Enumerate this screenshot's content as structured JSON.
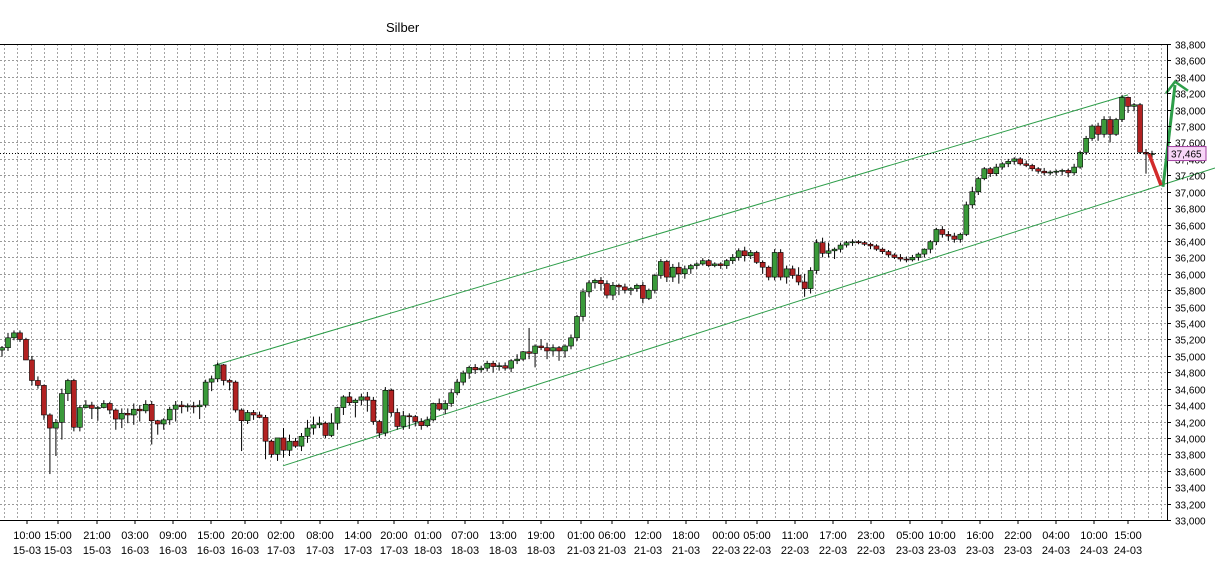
{
  "chart_data": {
    "type": "candlestick",
    "title": "Silber",
    "xlabel": "",
    "ylabel": "",
    "ylim": [
      33000,
      38800
    ],
    "y_ticks": [
      "33,000",
      "33,200",
      "33,400",
      "33,600",
      "33,800",
      "34,000",
      "34,200",
      "34,400",
      "34,600",
      "34,800",
      "35,000",
      "35,200",
      "35,400",
      "35,600",
      "35,800",
      "36,000",
      "36,200",
      "36,400",
      "36,600",
      "36,800",
      "37,000",
      "37,200",
      "37,400",
      "37,600",
      "37,800",
      "38,000",
      "38,200",
      "38,400",
      "38,600",
      "38,800"
    ],
    "x_tick_times": [
      "10:00",
      "10:00",
      "15:00",
      "21:00",
      "03:00",
      "09:00",
      "15:00",
      "20:00",
      "02:00",
      "08:00",
      "14:00",
      "20:00",
      "01:00",
      "07:00",
      "13:00",
      "19:00",
      "01:00",
      "06:00",
      "12:00",
      "18:00",
      "00:00",
      "05:00",
      "11:00",
      "17:00",
      "23:00",
      "05:00",
      "10:00",
      "16:00",
      "22:00",
      "04:00",
      "10:00",
      "15:00"
    ],
    "x_tick_dates": [
      "3",
      "15-03",
      "15-03",
      "15-03",
      "16-03",
      "16-03",
      "16-03",
      "16-03",
      "17-03",
      "17-03",
      "17-03",
      "17-03",
      "18-03",
      "18-03",
      "18-03",
      "18-03",
      "21-03",
      "21-03",
      "21-03",
      "21-03",
      "22-03",
      "22-03",
      "22-03",
      "22-03",
      "22-03",
      "23-03",
      "23-03",
      "23-03",
      "23-03",
      "24-03",
      "24-03",
      "24-03"
    ],
    "last_price": "37,465",
    "grid": true,
    "candles": [
      [
        35070,
        35120,
        34990,
        35100
      ],
      [
        35100,
        35280,
        35060,
        35220
      ],
      [
        35220,
        35310,
        35190,
        35280
      ],
      [
        35280,
        35310,
        35170,
        35200
      ],
      [
        35200,
        35220,
        34950,
        34950
      ],
      [
        34950,
        35000,
        34640,
        34700
      ],
      [
        34700,
        34750,
        34600,
        34640
      ],
      [
        34640,
        34650,
        34220,
        34280
      ],
      [
        34280,
        34300,
        33560,
        34120
      ],
      [
        34120,
        34230,
        33780,
        34190
      ],
      [
        34190,
        34600,
        33980,
        34540
      ],
      [
        34540,
        34720,
        34450,
        34700
      ],
      [
        34700,
        34720,
        34080,
        34130
      ],
      [
        34130,
        34400,
        34080,
        34370
      ],
      [
        34370,
        34460,
        34360,
        34400
      ],
      [
        34400,
        34440,
        34230,
        34360
      ],
      [
        34360,
        34390,
        34210,
        34370
      ],
      [
        34370,
        34460,
        34360,
        34420
      ],
      [
        34420,
        34440,
        34290,
        34340
      ],
      [
        34340,
        34360,
        34100,
        34230
      ],
      [
        34230,
        34360,
        34120,
        34300
      ],
      [
        34300,
        34360,
        34180,
        34280
      ],
      [
        34280,
        34420,
        34160,
        34350
      ],
      [
        34350,
        34400,
        34200,
        34330
      ],
      [
        34330,
        34460,
        34300,
        34410
      ],
      [
        34410,
        34450,
        33920,
        34210
      ],
      [
        34210,
        34220,
        34040,
        34170
      ],
      [
        34170,
        34240,
        34100,
        34220
      ],
      [
        34220,
        34380,
        34160,
        34350
      ],
      [
        34350,
        34450,
        34200,
        34400
      ],
      [
        34400,
        34450,
        34300,
        34380
      ],
      [
        34380,
        34420,
        34320,
        34390
      ],
      [
        34390,
        34440,
        34300,
        34380
      ],
      [
        34380,
        34460,
        34230,
        34400
      ],
      [
        34400,
        34710,
        34370,
        34680
      ],
      [
        34680,
        34760,
        34570,
        34720
      ],
      [
        34720,
        34920,
        34680,
        34890
      ],
      [
        34890,
        34900,
        34640,
        34700
      ],
      [
        34700,
        34720,
        34580,
        34680
      ],
      [
        34680,
        34700,
        34310,
        34340
      ],
      [
        34340,
        34360,
        33840,
        34210
      ],
      [
        34210,
        34340,
        34170,
        34310
      ],
      [
        34310,
        34340,
        34220,
        34280
      ],
      [
        34280,
        34320,
        34240,
        34250
      ],
      [
        34250,
        34280,
        33740,
        33960
      ],
      [
        33960,
        33980,
        33760,
        33800
      ],
      [
        33800,
        33960,
        33720,
        34000
      ],
      [
        34000,
        34120,
        33760,
        33850
      ],
      [
        33850,
        34040,
        33780,
        33960
      ],
      [
        33960,
        34000,
        33880,
        33900
      ],
      [
        33900,
        34060,
        33840,
        34020
      ],
      [
        34020,
        34220,
        33940,
        34120
      ],
      [
        34120,
        34260,
        34040,
        34160
      ],
      [
        34160,
        34260,
        34120,
        34180
      ],
      [
        34180,
        34200,
        34000,
        34030
      ],
      [
        34030,
        34300,
        34010,
        34180
      ],
      [
        34180,
        34380,
        34100,
        34370
      ],
      [
        34370,
        34520,
        34280,
        34500
      ],
      [
        34500,
        34560,
        34400,
        34430
      ],
      [
        34430,
        34480,
        34250,
        34460
      ],
      [
        34460,
        34540,
        34400,
        34500
      ],
      [
        34500,
        34560,
        34320,
        34460
      ],
      [
        34460,
        34500,
        34160,
        34200
      ],
      [
        34200,
        34220,
        34000,
        34060
      ],
      [
        34060,
        34620,
        34020,
        34580
      ],
      [
        34580,
        34600,
        34260,
        34310
      ],
      [
        34310,
        34360,
        34100,
        34140
      ],
      [
        34140,
        34330,
        34100,
        34270
      ],
      [
        34270,
        34300,
        34110,
        34260
      ],
      [
        34260,
        34280,
        34140,
        34200
      ],
      [
        34200,
        34240,
        34100,
        34150
      ],
      [
        34150,
        34260,
        34130,
        34220
      ],
      [
        34220,
        34430,
        34200,
        34420
      ],
      [
        34420,
        34480,
        34330,
        34350
      ],
      [
        34350,
        34460,
        34290,
        34420
      ],
      [
        34420,
        34600,
        34380,
        34550
      ],
      [
        34550,
        34720,
        34520,
        34680
      ],
      [
        34680,
        34820,
        34640,
        34790
      ],
      [
        34790,
        34880,
        34720,
        34860
      ],
      [
        34860,
        34900,
        34780,
        34830
      ],
      [
        34830,
        34880,
        34800,
        34850
      ],
      [
        34850,
        34940,
        34810,
        34910
      ],
      [
        34910,
        34940,
        34800,
        34870
      ],
      [
        34870,
        34920,
        34820,
        34880
      ],
      [
        34880,
        34920,
        34820,
        34850
      ],
      [
        34850,
        34960,
        34800,
        34940
      ],
      [
        34940,
        35020,
        34900,
        34960
      ],
      [
        34960,
        35060,
        34940,
        35050
      ],
      [
        35050,
        35340,
        34960,
        35030
      ],
      [
        35030,
        35140,
        34860,
        35120
      ],
      [
        35120,
        35200,
        35070,
        35100
      ],
      [
        35100,
        35160,
        34960,
        35060
      ],
      [
        35060,
        35140,
        35000,
        35100
      ],
      [
        35100,
        35120,
        34940,
        35060
      ],
      [
        35060,
        35140,
        34980,
        35120
      ],
      [
        35120,
        35260,
        35080,
        35220
      ],
      [
        35220,
        35500,
        35180,
        35480
      ],
      [
        35480,
        35820,
        35420,
        35780
      ],
      [
        35780,
        35920,
        35720,
        35890
      ],
      [
        35890,
        35940,
        35820,
        35920
      ],
      [
        35920,
        35960,
        35800,
        35880
      ],
      [
        35880,
        35920,
        35700,
        35740
      ],
      [
        35740,
        35900,
        35680,
        35860
      ],
      [
        35860,
        35880,
        35740,
        35840
      ],
      [
        35840,
        35880,
        35760,
        35800
      ],
      [
        35800,
        35840,
        35740,
        35820
      ],
      [
        35820,
        35880,
        35780,
        35860
      ],
      [
        35860,
        35900,
        35640,
        35700
      ],
      [
        35700,
        35820,
        35680,
        35800
      ],
      [
        35800,
        36000,
        35760,
        35980
      ],
      [
        35980,
        36180,
        35940,
        36150
      ],
      [
        36150,
        36170,
        35900,
        35960
      ],
      [
        35960,
        36120,
        35900,
        36080
      ],
      [
        36080,
        36140,
        35880,
        36000
      ],
      [
        36000,
        36100,
        35940,
        36060
      ],
      [
        36060,
        36120,
        36000,
        36100
      ],
      [
        36100,
        36140,
        36060,
        36120
      ],
      [
        36120,
        36190,
        36100,
        36160
      ],
      [
        36160,
        36180,
        36080,
        36100
      ],
      [
        36100,
        36140,
        36080,
        36120
      ],
      [
        36120,
        36140,
        36060,
        36100
      ],
      [
        36100,
        36180,
        36060,
        36160
      ],
      [
        36160,
        36240,
        36120,
        36200
      ],
      [
        36200,
        36310,
        36160,
        36280
      ],
      [
        36280,
        36330,
        36150,
        36220
      ],
      [
        36220,
        36290,
        36180,
        36260
      ],
      [
        36260,
        36280,
        36120,
        36140
      ],
      [
        36140,
        36160,
        36000,
        36080
      ],
      [
        36080,
        36100,
        35920,
        35960
      ],
      [
        35960,
        36300,
        35920,
        36260
      ],
      [
        36260,
        36300,
        35920,
        35960
      ],
      [
        35960,
        36100,
        35880,
        36060
      ],
      [
        36060,
        36100,
        35940,
        35980
      ],
      [
        35980,
        36080,
        35860,
        35900
      ],
      [
        35900,
        36000,
        35720,
        35820
      ],
      [
        35820,
        36080,
        35760,
        36040
      ],
      [
        36040,
        36420,
        36000,
        36380
      ],
      [
        36380,
        36440,
        36200,
        36250
      ],
      [
        36250,
        36380,
        36200,
        36280
      ],
      [
        36280,
        36320,
        36180,
        36300
      ],
      [
        36300,
        36380,
        36260,
        36350
      ],
      [
        36350,
        36400,
        36320,
        36380
      ],
      [
        36380,
        36420,
        36340,
        36390
      ],
      [
        36390,
        36410,
        36360,
        36380
      ],
      [
        36380,
        36400,
        36340,
        36360
      ],
      [
        36360,
        36380,
        36300,
        36340
      ],
      [
        36340,
        36360,
        36280,
        36300
      ],
      [
        36300,
        36320,
        36240,
        36270
      ],
      [
        36270,
        36290,
        36200,
        36230
      ],
      [
        36230,
        36250,
        36180,
        36200
      ],
      [
        36200,
        36240,
        36150,
        36180
      ],
      [
        36180,
        36210,
        36140,
        36170
      ],
      [
        36170,
        36230,
        36150,
        36200
      ],
      [
        36200,
        36260,
        36160,
        36240
      ],
      [
        36240,
        36310,
        36200,
        36300
      ],
      [
        36300,
        36410,
        36250,
        36390
      ],
      [
        36390,
        36560,
        36350,
        36540
      ],
      [
        36540,
        36580,
        36440,
        36480
      ],
      [
        36480,
        36520,
        36400,
        36460
      ],
      [
        36460,
        36500,
        36380,
        36420
      ],
      [
        36420,
        36500,
        36380,
        36480
      ],
      [
        36480,
        36880,
        36460,
        36840
      ],
      [
        36840,
        37060,
        36800,
        37000
      ],
      [
        37000,
        37180,
        36960,
        37160
      ],
      [
        37160,
        37300,
        37140,
        37280
      ],
      [
        37280,
        37300,
        37180,
        37220
      ],
      [
        37220,
        37340,
        37190,
        37300
      ],
      [
        37300,
        37360,
        37270,
        37340
      ],
      [
        37340,
        37400,
        37300,
        37370
      ],
      [
        37370,
        37420,
        37330,
        37400
      ],
      [
        37400,
        37420,
        37320,
        37340
      ],
      [
        37340,
        37380,
        37300,
        37320
      ],
      [
        37320,
        37340,
        37250,
        37280
      ],
      [
        37280,
        37300,
        37220,
        37250
      ],
      [
        37250,
        37290,
        37200,
        37230
      ],
      [
        37230,
        37260,
        37200,
        37240
      ],
      [
        37240,
        37270,
        37200,
        37250
      ],
      [
        37250,
        37280,
        37200,
        37260
      ],
      [
        37260,
        37280,
        37180,
        37230
      ],
      [
        37230,
        37340,
        37200,
        37300
      ],
      [
        37300,
        37500,
        37280,
        37480
      ],
      [
        37480,
        37680,
        37450,
        37650
      ],
      [
        37650,
        37820,
        37620,
        37800
      ],
      [
        37800,
        37840,
        37620,
        37700
      ],
      [
        37700,
        37920,
        37660,
        37880
      ],
      [
        37880,
        37920,
        37600,
        37700
      ],
      [
        37700,
        37900,
        37680,
        37880
      ],
      [
        37880,
        38180,
        37850,
        38150
      ],
      [
        38150,
        38160,
        37960,
        38040
      ],
      [
        38040,
        38080,
        37980,
        38060
      ],
      [
        38060,
        38080,
        37460,
        37480
      ],
      [
        37480,
        37520,
        37220,
        37460
      ],
      [
        37460,
        37500,
        37380,
        37465
      ]
    ]
  }
}
